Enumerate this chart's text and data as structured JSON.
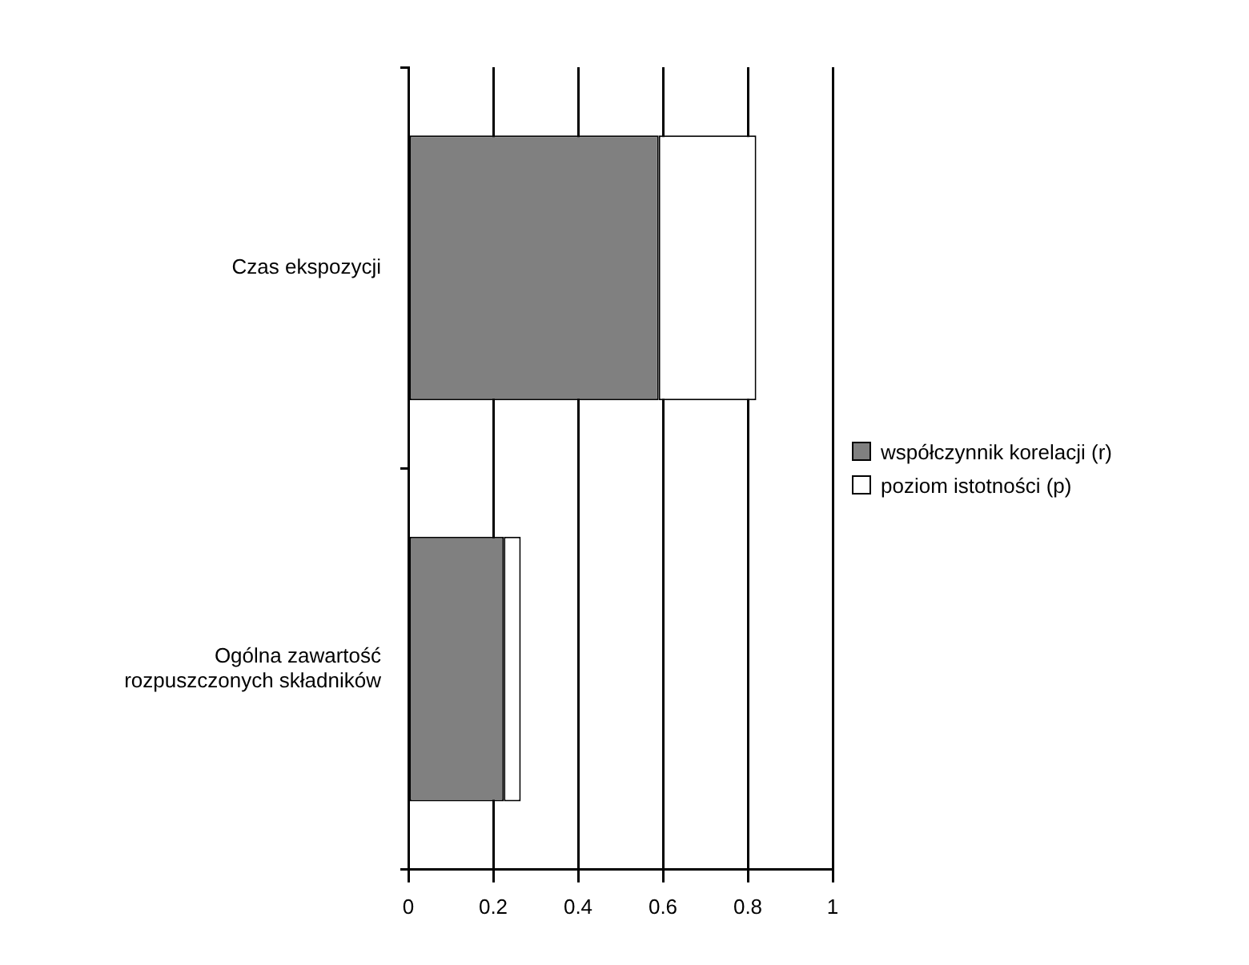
{
  "chart_data": {
    "type": "bar",
    "orientation": "horizontal",
    "stacked": true,
    "categories": [
      "Czas ekspozycji",
      "Ogólna zawartość rozpuszczonych składników"
    ],
    "series": [
      {
        "name": "współczynnik korelacji (r)",
        "color": "#808080",
        "values": [
          0.59,
          0.225
        ]
      },
      {
        "name": "poziom istotności (p)",
        "color": "#ffffff",
        "values": [
          0.23,
          0.04
        ]
      }
    ],
    "xlim": [
      0,
      1
    ],
    "xticks": [
      0,
      0.2,
      0.4,
      0.6,
      0.8,
      1
    ],
    "grid": "x",
    "legend": "right"
  }
}
